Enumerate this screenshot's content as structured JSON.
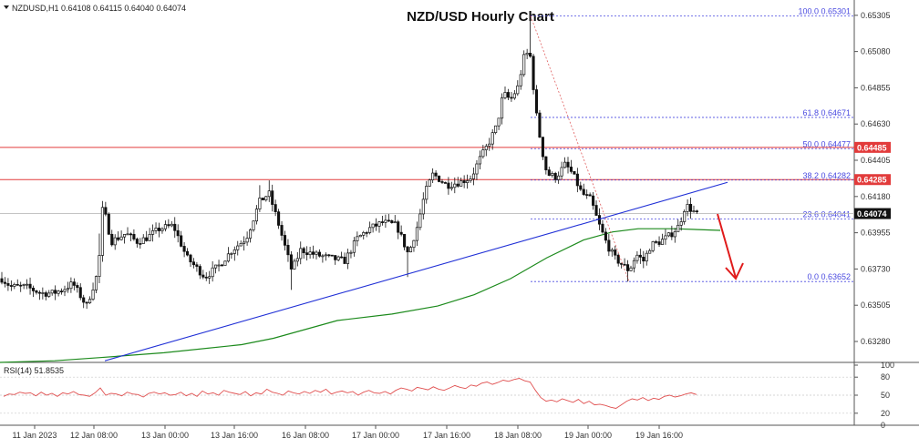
{
  "header": {
    "symbol_label": "NZDUSD,H1",
    "ohlc_label": "0.64108 0.64115 0.64040 0.64074",
    "title": "NZD/USD Hourly Chart"
  },
  "chart_data": [
    {
      "type": "candlestick",
      "title": "NZD/USD Hourly Chart",
      "symbol": "NZDUSD",
      "timeframe": "H1",
      "ylim": [
        0.6315,
        0.654
      ],
      "price_ticks": [
        "0.65305",
        "0.65080",
        "0.64855",
        "0.64630",
        "0.64405",
        "0.64180",
        "0.63955",
        "0.63730",
        "0.63505",
        "0.63280"
      ],
      "time_labels": [
        "11 Jan 2023",
        "12 Jan 08:00",
        "13 Jan 00:00",
        "13 Jan 16:00",
        "16 Jan 08:00",
        "17 Jan 00:00",
        "17 Jan 16:00",
        "18 Jan 08:00",
        "19 Jan 00:00",
        "19 Jan 16:00"
      ],
      "current_price": "0.64074",
      "resistance_levels": [
        {
          "label": "0.64485",
          "value": 0.64485,
          "color": "#e23b3b"
        },
        {
          "label": "0.64285",
          "value": 0.64285,
          "color": "#e23b3b"
        }
      ],
      "fibonacci": [
        {
          "label": "100.0 0.65301",
          "value": 0.65301
        },
        {
          "label": "61.8 0.64671",
          "value": 0.64671
        },
        {
          "label": "50.0 0.64477",
          "value": 0.64477
        },
        {
          "label": "38.2 0.64282",
          "value": 0.64282
        },
        {
          "label": "23.6 0.64041",
          "value": 0.64041
        },
        {
          "label": "0.0 0.63652",
          "value": 0.63652
        }
      ],
      "colors": {
        "trendline": "#1f2fd6",
        "moving_average": "#1c8a1c",
        "resistance": "#e23b3b",
        "fibonacci": "#4a4ae0",
        "forecast_arrow": "#e01b1b",
        "candles": "#111111"
      },
      "grid": false
    },
    {
      "type": "line",
      "title": "RSI(14) 51.8535",
      "ylim": [
        0,
        100
      ],
      "y_ticks": [
        "100",
        "80",
        "50",
        "20",
        "0"
      ],
      "levels": [
        80,
        50,
        20
      ],
      "line_color": "#e05050",
      "values": [
        48,
        52,
        51,
        55,
        53,
        54,
        49,
        55,
        50,
        53,
        48,
        54,
        52,
        56,
        51,
        50,
        48,
        54,
        62,
        50,
        53,
        52,
        49,
        55,
        52,
        51,
        47,
        53,
        55,
        52,
        54,
        50,
        51,
        55,
        49,
        53,
        48,
        57,
        52,
        54,
        50,
        58,
        55,
        53,
        51,
        56,
        49,
        54,
        52,
        60,
        55,
        53,
        50,
        57,
        54,
        52,
        56,
        53,
        58,
        55,
        60,
        52,
        55,
        57,
        54,
        56,
        50,
        55,
        58,
        54,
        53,
        56,
        52,
        58,
        62,
        60,
        57,
        63,
        61,
        59,
        64,
        60,
        58,
        62,
        66,
        63,
        61,
        67,
        65,
        70,
        72,
        68,
        71,
        75,
        73,
        76,
        78,
        74,
        72,
        58,
        46,
        40,
        42,
        39,
        44,
        41,
        38,
        43,
        36,
        40,
        34,
        35,
        33,
        30,
        28,
        34,
        40,
        44,
        42,
        46,
        41,
        45,
        43,
        48,
        50,
        47,
        49,
        52,
        54,
        51
      ]
    }
  ]
}
